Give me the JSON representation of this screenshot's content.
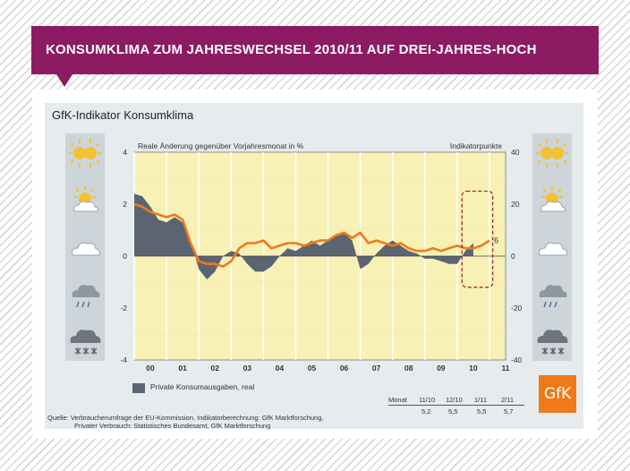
{
  "banner": {
    "title": "KONSUMKLIMA ZUM JAHRESWECHSEL 2010/11 AUF DREI-JAHRES-HOCH"
  },
  "chart_title": "GfK-Indikator Konsumklima",
  "colors": {
    "banner": "#8d1b63",
    "plot_bg": "#f8f1b6",
    "area": "#5b6472",
    "line": "#f07a1a",
    "highlight_box": "#9b2d2d",
    "logo": "#f07a1a"
  },
  "icons": [
    "sunny-icon",
    "partly-sunny-icon",
    "cloud-icon",
    "rain-cloud-icon",
    "snow-cloud-icon"
  ],
  "legend": {
    "area_label": "Private Konsumausgaben, real"
  },
  "table": {
    "header_label": "Monat",
    "months": [
      "11/10",
      "12/10",
      "1/11",
      "2/11"
    ],
    "values": [
      "5,2",
      "5,5",
      "5,5",
      "5,7"
    ]
  },
  "source": {
    "line1": "Quelle: Verbraucherumfrage der EU-Kommission, Indikatorberechnung: GfK Marktforschung,",
    "line2": "Privater Verbrauch: Statistisches Bundesamt, GfK Marktforschung"
  },
  "logo_text": "GfK",
  "chart_data": {
    "type": "area",
    "title": "GfK-Indikator Konsumklima",
    "ylabel": "Reale Änderung gegenüber Vorjahresmonat in %",
    "y2label": "Indikatorpunkte",
    "ylim": [
      -4,
      4
    ],
    "y2lim": [
      -40,
      40
    ],
    "yticks": [
      4,
      2,
      0,
      -2,
      -4
    ],
    "y2ticks": [
      40,
      20,
      0,
      -20,
      -40
    ],
    "xlim": [
      2000,
      2011.5
    ],
    "xticks": [
      "00",
      "01",
      "02",
      "03",
      "04",
      "05",
      "06",
      "07",
      "08",
      "09",
      "10",
      "11"
    ],
    "grid": true,
    "end_annotation": "6",
    "series": [
      {
        "name": "Private Konsumausgaben, real",
        "kind": "area",
        "axis": "left",
        "x": [
          2000,
          2000.25,
          2000.5,
          2000.75,
          2001,
          2001.25,
          2001.5,
          2001.75,
          2002,
          2002.25,
          2002.5,
          2002.75,
          2003,
          2003.25,
          2003.5,
          2003.75,
          2004,
          2004.25,
          2004.5,
          2004.75,
          2005,
          2005.25,
          2005.5,
          2005.75,
          2006,
          2006.25,
          2006.5,
          2006.75,
          2007,
          2007.25,
          2007.5,
          2007.75,
          2008,
          2008.25,
          2008.5,
          2008.75,
          2009,
          2009.25,
          2009.5,
          2009.75,
          2010,
          2010.25,
          2010.5
        ],
        "values": [
          2.4,
          2.3,
          1.9,
          1.4,
          1.3,
          1.5,
          1.3,
          0.6,
          -0.5,
          -0.9,
          -0.6,
          0.0,
          0.2,
          0.1,
          -0.3,
          -0.6,
          -0.6,
          -0.4,
          0.0,
          0.3,
          0.2,
          0.4,
          0.6,
          0.4,
          0.6,
          0.8,
          0.9,
          0.6,
          -0.5,
          -0.3,
          0.1,
          0.4,
          0.6,
          0.4,
          0.2,
          0.1,
          -0.1,
          -0.1,
          -0.2,
          -0.3,
          -0.3,
          0.2,
          0.5
        ]
      },
      {
        "name": "GfK-Indikator Konsumklima",
        "kind": "line",
        "axis": "right",
        "x": [
          2000,
          2000.25,
          2000.5,
          2000.75,
          2001,
          2001.25,
          2001.5,
          2001.75,
          2002,
          2002.25,
          2002.5,
          2002.75,
          2003,
          2003.25,
          2003.5,
          2003.75,
          2004,
          2004.25,
          2004.5,
          2004.75,
          2005,
          2005.25,
          2005.5,
          2005.75,
          2006,
          2006.25,
          2006.5,
          2006.75,
          2007,
          2007.25,
          2007.5,
          2007.75,
          2008,
          2008.25,
          2008.5,
          2008.75,
          2009,
          2009.25,
          2009.5,
          2009.75,
          2010,
          2010.25,
          2010.5,
          2010.75,
          2011
        ],
        "values": [
          20,
          19,
          17,
          16,
          15,
          16,
          14,
          5,
          -2,
          -3,
          -3,
          -4,
          -2,
          3,
          5,
          5,
          6,
          3,
          4,
          5,
          5,
          4,
          5,
          6,
          6,
          8,
          9,
          7,
          9,
          5,
          6,
          5,
          4,
          5,
          3,
          2,
          2,
          3,
          2,
          3,
          4,
          3,
          3,
          4,
          6
        ]
      }
    ]
  }
}
